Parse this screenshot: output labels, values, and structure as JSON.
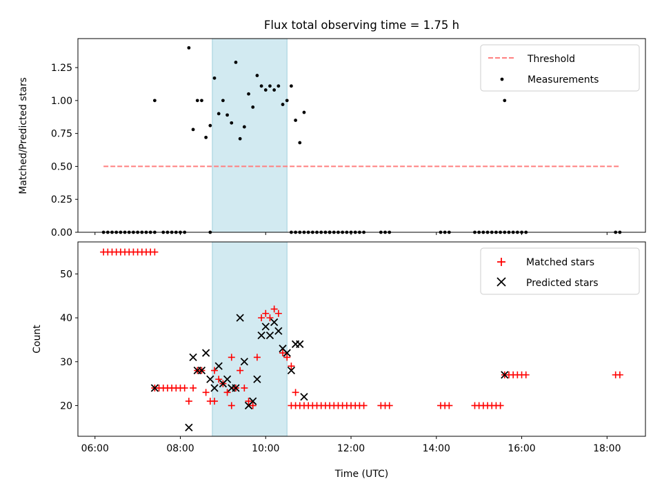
{
  "figure": {
    "title": "Flux total observing time = 1.75 h"
  },
  "chart_data": [
    {
      "type": "scatter",
      "id": "ratio",
      "title": "Flux total observing time = 1.75 h",
      "xlabel": "",
      "ylabel": "Matched/Predicted stars",
      "xlim": [
        "05:36",
        "18:54"
      ],
      "ylim": [
        0.0,
        1.47
      ],
      "yticks": [
        "0.00",
        "0.25",
        "0.50",
        "0.75",
        "1.00",
        "1.25"
      ],
      "highlight_span": {
        "start": "08:45",
        "end": "10:30",
        "color": "#add8e6"
      },
      "legend": {
        "position": "top-right",
        "entries": [
          "Threshold",
          "Measurements"
        ]
      },
      "series": [
        {
          "name": "Threshold",
          "kind": "line",
          "style": "dashed",
          "color": "#ff7f7f",
          "x": [
            "06:12",
            "18:18"
          ],
          "y": [
            0.5,
            0.5
          ]
        },
        {
          "name": "Measurements",
          "kind": "scatter",
          "color": "#000000",
          "points": [
            {
              "t": "07:24",
              "v": 1.0
            },
            {
              "t": "08:12",
              "v": 1.4
            },
            {
              "t": "08:18",
              "v": 0.78
            },
            {
              "t": "08:24",
              "v": 1.0
            },
            {
              "t": "08:30",
              "v": 1.0
            },
            {
              "t": "08:36",
              "v": 0.72
            },
            {
              "t": "08:42",
              "v": 0.81
            },
            {
              "t": "08:48",
              "v": 1.17
            },
            {
              "t": "08:54",
              "v": 0.9
            },
            {
              "t": "09:00",
              "v": 1.0
            },
            {
              "t": "09:06",
              "v": 0.89
            },
            {
              "t": "09:12",
              "v": 0.83
            },
            {
              "t": "09:18",
              "v": 1.29
            },
            {
              "t": "09:24",
              "v": 0.71
            },
            {
              "t": "09:30",
              "v": 0.8
            },
            {
              "t": "09:36",
              "v": 1.05
            },
            {
              "t": "09:42",
              "v": 0.95
            },
            {
              "t": "09:48",
              "v": 1.19
            },
            {
              "t": "09:54",
              "v": 1.11
            },
            {
              "t": "10:00",
              "v": 1.08
            },
            {
              "t": "10:06",
              "v": 1.11
            },
            {
              "t": "10:12",
              "v": 1.08
            },
            {
              "t": "10:18",
              "v": 1.11
            },
            {
              "t": "10:24",
              "v": 0.97
            },
            {
              "t": "10:30",
              "v": 1.0
            },
            {
              "t": "10:36",
              "v": 1.11
            },
            {
              "t": "10:42",
              "v": 0.85
            },
            {
              "t": "10:48",
              "v": 0.68
            },
            {
              "t": "10:54",
              "v": 0.91
            },
            {
              "t": "15:36",
              "v": 1.0
            }
          ],
          "zero_runs": [
            [
              "06:12",
              "07:24"
            ],
            [
              "07:36",
              "08:06"
            ],
            [
              "08:42",
              "08:42"
            ],
            [
              "10:36",
              "11:30"
            ],
            [
              "11:30",
              "11:48"
            ],
            [
              "11:54",
              "12:18"
            ],
            [
              "12:42",
              "12:54"
            ],
            [
              "14:06",
              "14:18"
            ],
            [
              "14:54",
              "15:30"
            ],
            [
              "15:36",
              "16:06"
            ],
            [
              "18:12",
              "18:18"
            ]
          ]
        }
      ]
    },
    {
      "type": "scatter",
      "id": "counts",
      "title": "",
      "xlabel": "Time (UTC)",
      "ylabel": "Count",
      "xlim": [
        "05:36",
        "18:54"
      ],
      "ylim": [
        13,
        57.3
      ],
      "yticks": [
        "20",
        "30",
        "40",
        "50"
      ],
      "xticks": [
        "06:00",
        "08:00",
        "10:00",
        "12:00",
        "14:00",
        "16:00",
        "18:00"
      ],
      "highlight_span": {
        "start": "08:45",
        "end": "10:30",
        "color": "#add8e6"
      },
      "legend": {
        "position": "top-right",
        "entries": [
          "Matched stars",
          "Predicted stars"
        ]
      },
      "series": [
        {
          "name": "Matched stars",
          "marker": "plus",
          "color": "#ff0000",
          "runs": [
            {
              "from": "06:12",
              "to": "07:24",
              "v": 55
            },
            {
              "from": "07:24",
              "to": "08:06",
              "v": 24
            },
            {
              "from": "10:36",
              "to": "11:48",
              "v": 20
            },
            {
              "from": "11:54",
              "to": "12:18",
              "v": 20
            },
            {
              "from": "12:42",
              "to": "12:54",
              "v": 20
            },
            {
              "from": "14:06",
              "to": "14:18",
              "v": 20
            },
            {
              "from": "14:54",
              "to": "15:30",
              "v": 20
            },
            {
              "from": "15:36",
              "to": "16:06",
              "v": 27
            },
            {
              "from": "18:12",
              "to": "18:18",
              "v": 27
            }
          ],
          "points": [
            {
              "t": "08:12",
              "v": 21
            },
            {
              "t": "08:18",
              "v": 24
            },
            {
              "t": "08:24",
              "v": 28
            },
            {
              "t": "08:30",
              "v": 28
            },
            {
              "t": "08:36",
              "v": 23
            },
            {
              "t": "08:42",
              "v": 21
            },
            {
              "t": "08:48",
              "v": 21
            },
            {
              "t": "08:48",
              "v": 28
            },
            {
              "t": "08:54",
              "v": 26
            },
            {
              "t": "09:00",
              "v": 25
            },
            {
              "t": "09:06",
              "v": 23
            },
            {
              "t": "09:12",
              "v": 20
            },
            {
              "t": "09:12",
              "v": 31
            },
            {
              "t": "09:18",
              "v": 24
            },
            {
              "t": "09:24",
              "v": 28
            },
            {
              "t": "09:30",
              "v": 24
            },
            {
              "t": "09:36",
              "v": 21
            },
            {
              "t": "09:42",
              "v": 20
            },
            {
              "t": "09:48",
              "v": 31
            },
            {
              "t": "09:54",
              "v": 40
            },
            {
              "t": "10:00",
              "v": 41
            },
            {
              "t": "10:06",
              "v": 40
            },
            {
              "t": "10:12",
              "v": 42
            },
            {
              "t": "10:18",
              "v": 41
            },
            {
              "t": "10:24",
              "v": 32
            },
            {
              "t": "10:30",
              "v": 31
            },
            {
              "t": "10:36",
              "v": 29
            },
            {
              "t": "10:42",
              "v": 23
            }
          ]
        },
        {
          "name": "Predicted stars",
          "marker": "x",
          "color": "#000000",
          "points": [
            {
              "t": "07:24",
              "v": 24
            },
            {
              "t": "08:12",
              "v": 15
            },
            {
              "t": "08:18",
              "v": 31
            },
            {
              "t": "08:24",
              "v": 28
            },
            {
              "t": "08:30",
              "v": 28
            },
            {
              "t": "08:36",
              "v": 32
            },
            {
              "t": "08:42",
              "v": 26
            },
            {
              "t": "08:48",
              "v": 24
            },
            {
              "t": "08:54",
              "v": 29
            },
            {
              "t": "09:00",
              "v": 25
            },
            {
              "t": "09:06",
              "v": 26
            },
            {
              "t": "09:12",
              "v": 24
            },
            {
              "t": "09:18",
              "v": 24
            },
            {
              "t": "09:24",
              "v": 40
            },
            {
              "t": "09:30",
              "v": 30
            },
            {
              "t": "09:36",
              "v": 20
            },
            {
              "t": "09:42",
              "v": 21
            },
            {
              "t": "09:48",
              "v": 26
            },
            {
              "t": "09:54",
              "v": 36
            },
            {
              "t": "10:00",
              "v": 38
            },
            {
              "t": "10:06",
              "v": 36
            },
            {
              "t": "10:12",
              "v": 39
            },
            {
              "t": "10:18",
              "v": 37
            },
            {
              "t": "10:24",
              "v": 33
            },
            {
              "t": "10:30",
              "v": 32
            },
            {
              "t": "10:36",
              "v": 28
            },
            {
              "t": "10:42",
              "v": 34
            },
            {
              "t": "10:48",
              "v": 34
            },
            {
              "t": "10:54",
              "v": 22
            },
            {
              "t": "15:36",
              "v": 27
            }
          ]
        }
      ]
    }
  ]
}
